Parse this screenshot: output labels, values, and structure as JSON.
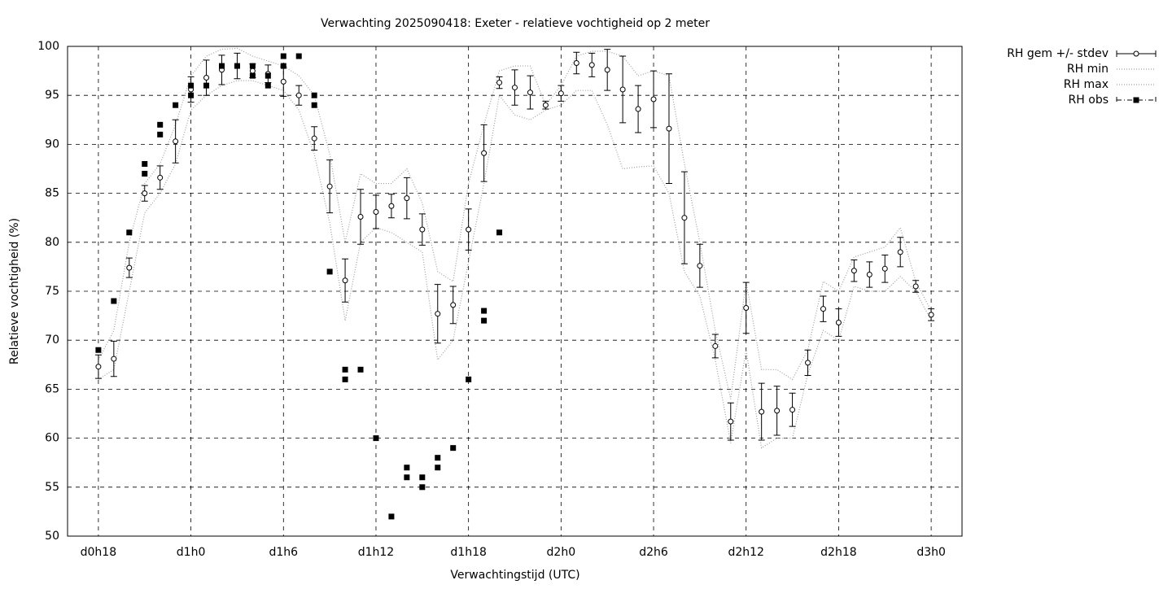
{
  "chart_data": {
    "type": "errorbar",
    "title": "Verwachting 2025090418: Exeter - relatieve vochtigheid op 2 meter",
    "xlabel": "Verwachtingstijd (UTC)",
    "ylabel": "Relatieve vochtigheid (%)",
    "xlim": [
      16,
      74
    ],
    "ylim": [
      50,
      100
    ],
    "xticks": [
      {
        "value": 18,
        "label": "d0h18"
      },
      {
        "value": 24,
        "label": "d1h0"
      },
      {
        "value": 30,
        "label": "d1h6"
      },
      {
        "value": 36,
        "label": "d1h12"
      },
      {
        "value": 42,
        "label": "d1h18"
      },
      {
        "value": 48,
        "label": "d2h0"
      },
      {
        "value": 54,
        "label": "d2h6"
      },
      {
        "value": 60,
        "label": "d2h12"
      },
      {
        "value": 66,
        "label": "d2h18"
      },
      {
        "value": 72,
        "label": "d3h0"
      }
    ],
    "yticks": [
      50,
      55,
      60,
      65,
      70,
      75,
      80,
      85,
      90,
      95,
      100
    ],
    "grid": true,
    "x": [
      18,
      19,
      20,
      21,
      22,
      23,
      24,
      25,
      26,
      27,
      28,
      29,
      30,
      31,
      32,
      33,
      34,
      35,
      36,
      37,
      38,
      39,
      40,
      41,
      42,
      43,
      44,
      45,
      46,
      47,
      48,
      49,
      50,
      51,
      52,
      53,
      54,
      55,
      56,
      57,
      58,
      59,
      60,
      61,
      62,
      63,
      64,
      65,
      66,
      67,
      68,
      69,
      70,
      71,
      72
    ],
    "series": [
      {
        "name": "RH gem +/- stdev",
        "color": "#000000",
        "values": [
          67.3,
          68.1,
          77.4,
          85.0,
          86.6,
          90.3,
          95.6,
          96.8,
          97.6,
          98.0,
          97.5,
          97.2,
          96.4,
          95.0,
          90.6,
          85.7,
          76.1,
          82.6,
          83.1,
          83.7,
          84.5,
          81.3,
          72.7,
          73.6,
          81.3,
          89.1,
          96.3,
          95.8,
          95.3,
          94.0,
          95.2,
          98.3,
          98.1,
          97.6,
          95.6,
          93.6,
          94.6,
          91.6,
          82.5,
          77.6,
          69.4,
          61.7,
          73.3,
          62.7,
          62.8,
          62.9,
          67.7,
          73.2,
          71.8,
          77.1,
          76.7,
          77.3,
          79.0,
          75.5,
          72.6
        ],
        "errors": [
          1.2,
          1.8,
          1.0,
          0.8,
          1.2,
          2.2,
          1.3,
          1.8,
          1.5,
          1.3,
          0.7,
          0.9,
          1.5,
          1.0,
          1.2,
          2.7,
          2.2,
          2.8,
          1.7,
          1.2,
          2.1,
          1.6,
          3.0,
          1.9,
          2.1,
          2.9,
          0.6,
          1.8,
          1.7,
          0.4,
          0.8,
          1.1,
          1.2,
          2.1,
          3.4,
          2.4,
          2.9,
          5.6,
          4.7,
          2.2,
          1.2,
          1.9,
          2.6,
          2.9,
          2.5,
          1.7,
          1.3,
          1.3,
          1.4,
          1.1,
          1.3,
          1.4,
          1.5,
          0.6,
          0.6
        ]
      },
      {
        "name": "RH min",
        "color": "#a0a0a0",
        "values": [
          66,
          67,
          75,
          83,
          85,
          88,
          93.5,
          95,
          96,
          96.5,
          96.5,
          96,
          95.5,
          93.5,
          89,
          82,
          72,
          80,
          81.5,
          81,
          80,
          79,
          68,
          70,
          78,
          86,
          95,
          93,
          92.5,
          93.5,
          94,
          95.5,
          95.5,
          92,
          87.5,
          87.7,
          87.8,
          85,
          77,
          74.5,
          68,
          59.5,
          69,
          59,
          60,
          60,
          66.5,
          71,
          70,
          75.5,
          75,
          75,
          76.5,
          75,
          72
        ]
      },
      {
        "name": "RH max",
        "color": "#a0a0a0",
        "values": [
          68,
          71,
          80,
          86,
          88,
          92,
          97,
          99,
          99.7,
          99.8,
          99,
          98.5,
          98,
          97,
          95,
          89,
          80,
          87,
          86,
          86,
          87.5,
          84,
          77,
          76,
          86,
          92,
          97.5,
          98,
          98,
          94,
          96,
          99,
          99.5,
          99.5,
          99,
          97,
          97.5,
          97,
          88,
          80,
          71,
          64,
          76,
          67,
          67,
          66,
          69,
          76,
          75,
          78.5,
          79,
          79.5,
          81.5,
          76,
          73
        ]
      },
      {
        "name": "RH obs",
        "color": "#000000",
        "x": [
          18,
          19,
          20,
          21,
          21,
          22,
          22,
          23,
          24,
          24,
          25,
          26,
          27,
          28,
          28,
          29,
          29,
          30,
          30,
          31,
          32,
          32,
          33,
          34,
          34,
          35,
          36,
          37,
          38,
          38,
          39,
          39,
          40,
          40,
          41,
          42,
          43,
          43,
          44
        ],
        "values": [
          69,
          74,
          81,
          88,
          87,
          92,
          91,
          94,
          96,
          95,
          96,
          98,
          98,
          98,
          97,
          97,
          96,
          99,
          98,
          99,
          95,
          94,
          77,
          67,
          66,
          67,
          60,
          52,
          57,
          56,
          56,
          55,
          58,
          57,
          59,
          66,
          73,
          72,
          81
        ]
      }
    ]
  }
}
